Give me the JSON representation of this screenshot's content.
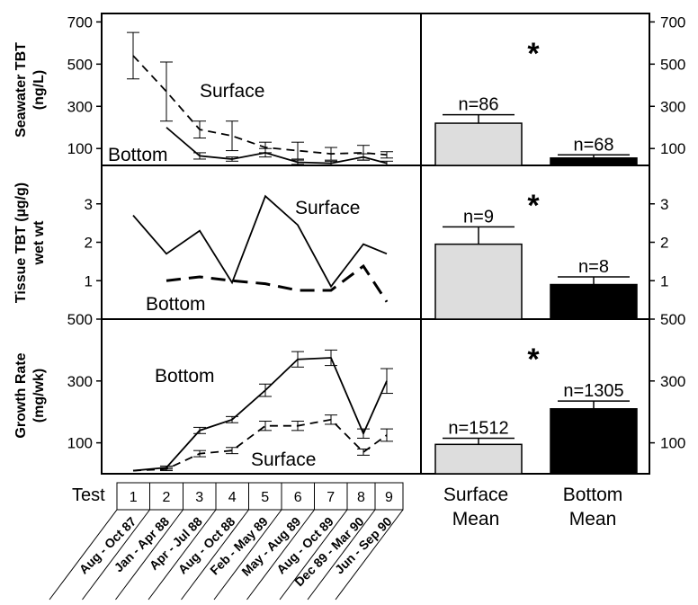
{
  "chart_data": [
    {
      "type": "line",
      "ylabel_lines": [
        "Seawater TBT",
        "(ng/L)"
      ],
      "yticks": [
        100,
        300,
        500,
        700
      ],
      "ylim": [
        20,
        740
      ],
      "x": [
        1,
        2,
        3,
        4,
        5,
        6,
        7,
        8,
        9
      ],
      "series": [
        {
          "name": "Surface",
          "style": "dashed",
          "values": [
            540,
            370,
            190,
            160,
            105,
            90,
            75,
            80,
            70
          ],
          "err": [
            110,
            140,
            40,
            70,
            25,
            40,
            30,
            35,
            15
          ]
        },
        {
          "name": "Bottom",
          "style": "solid",
          "values": [
            null,
            200,
            65,
            50,
            80,
            35,
            30,
            60,
            30
          ],
          "err": [
            0,
            0,
            15,
            10,
            20,
            10,
            10,
            15,
            10
          ]
        }
      ],
      "bars": {
        "ylim": [
          20,
          740
        ],
        "surface": {
          "label": "n=86",
          "value": 220,
          "err": 40
        },
        "bottom": {
          "label": "n=68",
          "value": 55,
          "err": 15
        },
        "significance": "*"
      }
    },
    {
      "type": "line",
      "ylabel_lines": [
        "Tissue TBT (µg/g)",
        "wet wt"
      ],
      "yticks": [
        1,
        2,
        3
      ],
      "ylim": [
        0,
        4
      ],
      "x": [
        1,
        2,
        3,
        4,
        5,
        6,
        7,
        8,
        9
      ],
      "series": [
        {
          "name": "Surface",
          "style": "solid",
          "values": [
            2.7,
            1.7,
            2.3,
            0.95,
            3.2,
            2.45,
            0.85,
            1.95,
            1.7
          ]
        },
        {
          "name": "Bottom",
          "style": "dashed",
          "values": [
            null,
            1.0,
            1.1,
            1.0,
            0.92,
            0.75,
            0.75,
            1.38,
            0.45
          ]
        }
      ],
      "bars": {
        "ylim": [
          0,
          4
        ],
        "surface": {
          "label": "n=9",
          "value": 1.95,
          "err": 0.45
        },
        "bottom": {
          "label": "n=8",
          "value": 0.9,
          "err": 0.2
        },
        "significance": "*"
      }
    },
    {
      "type": "line",
      "ylabel_lines": [
        "Growth Rate",
        "(mg/wk)"
      ],
      "yticks": [
        100,
        300,
        500
      ],
      "ylim": [
        0,
        500
      ],
      "x": [
        1,
        2,
        3,
        4,
        5,
        6,
        7,
        8,
        9
      ],
      "series": [
        {
          "name": "Bottom",
          "style": "solid",
          "values": [
            10,
            20,
            140,
            175,
            270,
            370,
            375,
            130,
            300
          ],
          "err": [
            0,
            5,
            10,
            10,
            20,
            25,
            25,
            15,
            40
          ]
        },
        {
          "name": "Surface",
          "style": "dashed",
          "values": [
            10,
            15,
            65,
            75,
            155,
            155,
            175,
            70,
            125
          ],
          "err": [
            0,
            5,
            10,
            10,
            15,
            15,
            15,
            10,
            20
          ]
        }
      ],
      "bars": {
        "ylim": [
          0,
          500
        ],
        "surface": {
          "label": "n=1512",
          "value": 95,
          "err": 20
        },
        "bottom": {
          "label": "n=1305",
          "value": 210,
          "err": 25
        },
        "significance": "*"
      }
    }
  ],
  "x_axis": {
    "test_label": "Test",
    "tests": [
      "1",
      "2",
      "3",
      "4",
      "5",
      "6",
      "7",
      "8",
      "9"
    ],
    "dates": [
      "Aug - Oct 87",
      "Jan - Apr 88",
      "Apr - Jul 88",
      "Aug - Oct 88",
      "Feb - May 89",
      "May - Aug 89",
      "Aug - Oct 89",
      "Dec 89 - Mar 90",
      "Jun - Sep 90"
    ]
  },
  "bar_labels": {
    "surface": [
      "Surface",
      "Mean"
    ],
    "bottom": [
      "Bottom",
      "Mean"
    ]
  },
  "colors": {
    "surface_bar": "#dddddd",
    "bottom_bar": "#000000",
    "line": "#000000"
  }
}
